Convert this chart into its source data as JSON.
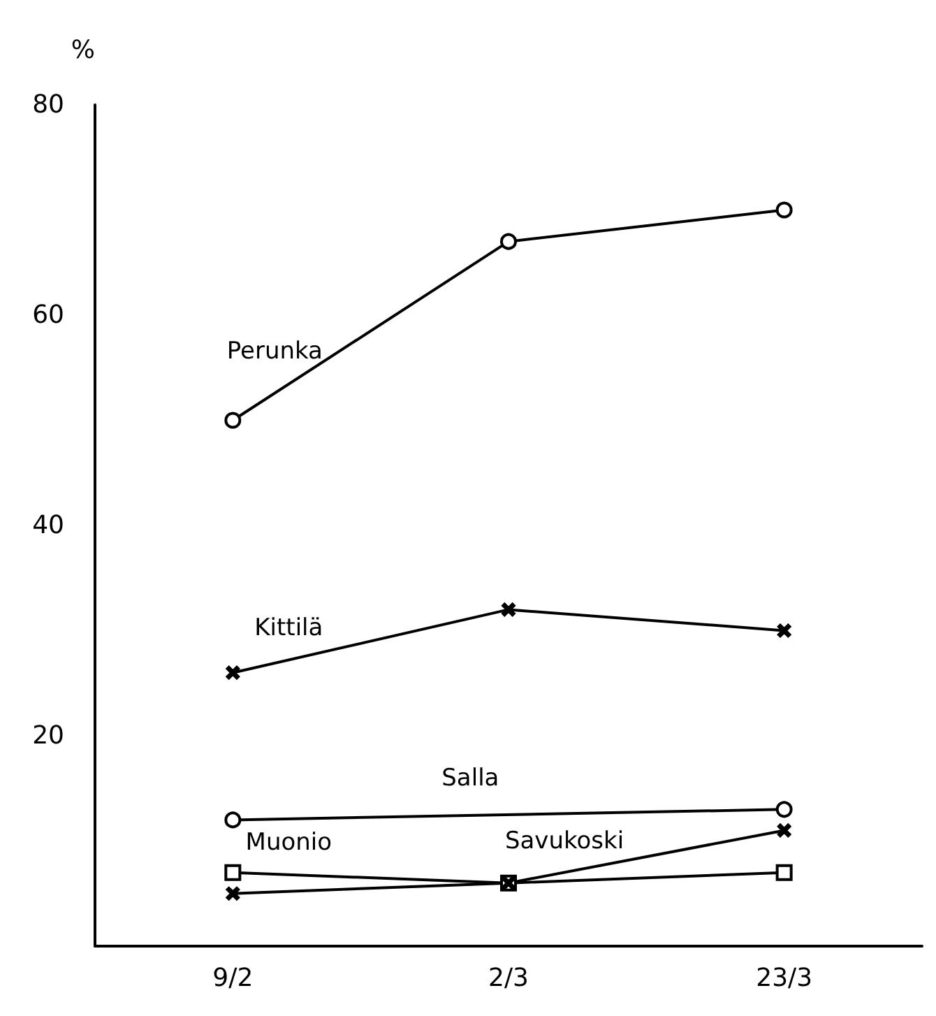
{
  "chart_data": {
    "type": "line",
    "ylabel": "%",
    "categories": [
      "9/2",
      "2/3",
      "23/3"
    ],
    "series": [
      {
        "name": "Perunka",
        "color": "#000000",
        "marker": "circle",
        "values": [
          50,
          67,
          70
        ]
      },
      {
        "name": "Kittilä",
        "color": "#000000",
        "marker": "cross",
        "values": [
          26,
          32,
          30
        ]
      },
      {
        "name": "Salla",
        "color": "#000000",
        "marker": "circle",
        "values": [
          12,
          null,
          13
        ]
      },
      {
        "name": "Muonio",
        "color": "#000000",
        "marker": "square",
        "values": [
          7,
          6,
          7
        ]
      },
      {
        "name": "Savukoski",
        "color": "#000000",
        "marker": "cross",
        "values": [
          5,
          6,
          11
        ]
      }
    ],
    "ylim": [
      0,
      80
    ],
    "yticks": [
      20,
      40,
      60,
      80
    ],
    "grid": false,
    "legend": false
  }
}
